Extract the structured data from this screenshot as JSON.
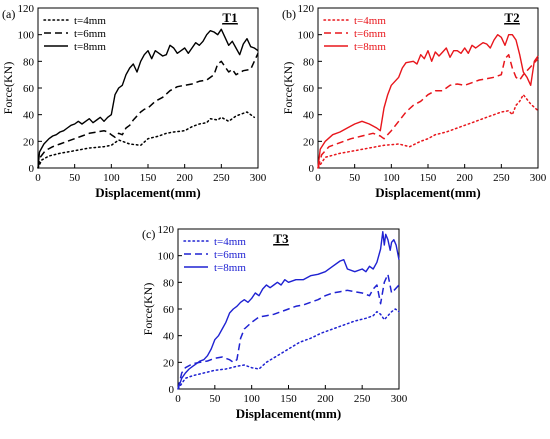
{
  "chart_data": [
    {
      "type": "line",
      "panel_label": "(a)",
      "tag": "T1",
      "color": "#000000",
      "xlabel": "Displacement(mm)",
      "ylabel": "Force(KN)",
      "xlim": [
        0,
        300
      ],
      "ylim": [
        0,
        120
      ],
      "xticks": [
        0,
        50,
        100,
        150,
        200,
        250,
        300
      ],
      "yticks": [
        0,
        20,
        40,
        60,
        80,
        100,
        120
      ],
      "legend_position": "top-left",
      "series": [
        {
          "name": "t=4mm",
          "style": "dotted",
          "x": [
            0,
            5,
            15,
            30,
            50,
            70,
            90,
            100,
            110,
            115,
            125,
            140,
            150,
            165,
            175,
            185,
            200,
            210,
            220,
            230,
            235,
            245,
            250,
            260,
            270,
            280,
            285,
            290,
            295
          ],
          "y": [
            0,
            6,
            9,
            11,
            13,
            15,
            16,
            17,
            21,
            20,
            18,
            17,
            22,
            24,
            26,
            27,
            28,
            31,
            33,
            34,
            37,
            36,
            38,
            35,
            39,
            41,
            42,
            40,
            38
          ]
        },
        {
          "name": "t=6mm",
          "style": "dashed",
          "x": [
            0,
            3,
            10,
            20,
            30,
            40,
            50,
            60,
            70,
            80,
            90,
            95,
            100,
            105,
            110,
            115,
            120,
            125,
            130,
            140,
            145,
            150,
            160,
            170,
            180,
            190,
            200,
            210,
            220,
            230,
            240,
            245,
            250,
            255,
            260,
            265,
            270,
            280,
            290,
            300
          ],
          "y": [
            0,
            8,
            13,
            16,
            18,
            20,
            22,
            24,
            26,
            27,
            28,
            27,
            25,
            23,
            26,
            25,
            30,
            32,
            36,
            42,
            44,
            45,
            50,
            53,
            58,
            61,
            62,
            63,
            65,
            66,
            70,
            78,
            80,
            76,
            72,
            74,
            70,
            73,
            74,
            86
          ]
        },
        {
          "name": "t=8mm",
          "style": "solid",
          "x": [
            0,
            2,
            8,
            15,
            20,
            25,
            30,
            35,
            40,
            45,
            50,
            55,
            60,
            65,
            70,
            75,
            80,
            85,
            90,
            95,
            100,
            105,
            110,
            115,
            120,
            125,
            130,
            135,
            140,
            145,
            150,
            155,
            160,
            165,
            170,
            175,
            180,
            185,
            190,
            195,
            200,
            205,
            210,
            215,
            220,
            225,
            230,
            235,
            240,
            245,
            250,
            255,
            260,
            265,
            270,
            275,
            280,
            285,
            290,
            295,
            300
          ],
          "y": [
            0,
            12,
            18,
            22,
            24,
            25,
            27,
            28,
            30,
            32,
            33,
            35,
            33,
            35,
            37,
            34,
            36,
            38,
            35,
            38,
            40,
            55,
            60,
            62,
            70,
            75,
            78,
            72,
            80,
            85,
            88,
            82,
            88,
            86,
            84,
            85,
            92,
            90,
            86,
            88,
            90,
            86,
            90,
            94,
            92,
            95,
            100,
            103,
            102,
            100,
            104,
            98,
            92,
            95,
            90,
            85,
            93,
            97,
            91,
            90,
            88
          ]
        }
      ]
    },
    {
      "type": "line",
      "panel_label": "(b)",
      "tag": "T2",
      "color": "#e8161c",
      "xlabel": "Displacement(mm)",
      "ylabel": "Force(KN)",
      "xlim": [
        0,
        300
      ],
      "ylim": [
        0,
        120
      ],
      "xticks": [
        0,
        50,
        100,
        150,
        200,
        250,
        300
      ],
      "yticks": [
        0,
        20,
        40,
        60,
        80,
        100,
        120
      ],
      "legend_position": "top-left",
      "series": [
        {
          "name": "t=4mm",
          "style": "dotted",
          "x": [
            0,
            10,
            30,
            50,
            70,
            90,
            110,
            125,
            140,
            150,
            160,
            175,
            190,
            200,
            210,
            220,
            230,
            240,
            250,
            260,
            265,
            270,
            275,
            280,
            290,
            300
          ],
          "y": [
            0,
            8,
            11,
            13,
            15,
            17,
            18,
            16,
            20,
            22,
            25,
            27,
            30,
            32,
            34,
            36,
            38,
            40,
            42,
            43,
            40,
            47,
            50,
            55,
            48,
            43
          ]
        },
        {
          "name": "t=6mm",
          "style": "dashed",
          "x": [
            0,
            5,
            15,
            30,
            45,
            60,
            75,
            85,
            90,
            100,
            110,
            120,
            130,
            140,
            150,
            160,
            170,
            180,
            190,
            200,
            210,
            220,
            230,
            240,
            250,
            255,
            260,
            265,
            270,
            275,
            280,
            290,
            300
          ],
          "y": [
            0,
            10,
            16,
            19,
            22,
            24,
            26,
            24,
            22,
            28,
            35,
            42,
            47,
            50,
            55,
            58,
            58,
            62,
            63,
            62,
            64,
            66,
            67,
            68,
            70,
            82,
            85,
            75,
            68,
            66,
            70,
            76,
            82
          ]
        },
        {
          "name": "t=8mm",
          "style": "solid",
          "x": [
            0,
            3,
            10,
            20,
            30,
            40,
            50,
            60,
            70,
            80,
            85,
            90,
            95,
            100,
            110,
            115,
            120,
            130,
            135,
            140,
            145,
            150,
            155,
            160,
            165,
            170,
            175,
            180,
            185,
            190,
            195,
            200,
            205,
            210,
            215,
            220,
            225,
            230,
            235,
            240,
            245,
            250,
            255,
            260,
            265,
            270,
            275,
            280,
            285,
            290,
            295,
            300
          ],
          "y": [
            0,
            14,
            20,
            25,
            27,
            30,
            33,
            35,
            33,
            30,
            28,
            45,
            55,
            62,
            68,
            75,
            79,
            80,
            78,
            85,
            82,
            88,
            80,
            87,
            84,
            87,
            90,
            83,
            88,
            88,
            86,
            90,
            86,
            92,
            90,
            92,
            94,
            93,
            90,
            96,
            100,
            98,
            92,
            100,
            100,
            96,
            85,
            72,
            68,
            62,
            80,
            84
          ]
        }
      ]
    },
    {
      "type": "line",
      "panel_label": "(c)",
      "tag": "T3",
      "color": "#1f22d2",
      "xlabel": "Displacement(mm)",
      "ylabel": "Force(KN)",
      "xlim": [
        0,
        300
      ],
      "ylim": [
        0,
        120
      ],
      "xticks": [
        0,
        50,
        100,
        150,
        200,
        250,
        300
      ],
      "yticks": [
        0,
        20,
        40,
        60,
        80,
        100,
        120
      ],
      "legend_position": "top-left",
      "series": [
        {
          "name": "t=4mm",
          "style": "dotted",
          "x": [
            0,
            10,
            20,
            35,
            50,
            65,
            80,
            90,
            100,
            110,
            120,
            135,
            150,
            165,
            180,
            195,
            210,
            225,
            240,
            255,
            265,
            270,
            275,
            280,
            285,
            290,
            295,
            300
          ],
          "y": [
            0,
            8,
            10,
            12,
            14,
            15,
            17,
            18,
            16,
            15,
            20,
            25,
            30,
            35,
            38,
            42,
            45,
            48,
            51,
            53,
            55,
            58,
            56,
            52,
            55,
            58,
            60,
            58
          ]
        },
        {
          "name": "t=6mm",
          "style": "dashed",
          "x": [
            0,
            5,
            10,
            20,
            30,
            40,
            50,
            60,
            70,
            75,
            80,
            85,
            90,
            100,
            110,
            120,
            130,
            140,
            150,
            160,
            170,
            180,
            190,
            200,
            210,
            220,
            230,
            240,
            250,
            260,
            265,
            270,
            275,
            280,
            285,
            290,
            300
          ],
          "y": [
            0,
            12,
            16,
            19,
            20,
            21,
            23,
            24,
            22,
            20,
            22,
            38,
            45,
            50,
            54,
            55,
            56,
            58,
            60,
            62,
            63,
            65,
            67,
            70,
            72,
            73,
            74,
            73,
            72,
            70,
            75,
            78,
            64,
            80,
            86,
            72,
            78
          ]
        },
        {
          "name": "t=8mm",
          "style": "solid",
          "x": [
            0,
            5,
            10,
            15,
            20,
            25,
            30,
            35,
            40,
            45,
            50,
            55,
            60,
            65,
            70,
            75,
            80,
            85,
            90,
            95,
            100,
            105,
            110,
            115,
            120,
            125,
            130,
            135,
            140,
            145,
            150,
            160,
            170,
            180,
            190,
            200,
            210,
            220,
            225,
            230,
            240,
            250,
            255,
            260,
            265,
            270,
            275,
            278,
            280,
            282,
            285,
            288,
            290,
            293,
            296,
            300
          ],
          "y": [
            0,
            8,
            12,
            15,
            17,
            19,
            21,
            22,
            25,
            30,
            37,
            40,
            45,
            50,
            57,
            60,
            62,
            65,
            67,
            65,
            68,
            72,
            70,
            75,
            78,
            76,
            78,
            80,
            78,
            82,
            80,
            82,
            82,
            85,
            86,
            88,
            92,
            96,
            97,
            90,
            88,
            90,
            88,
            92,
            90,
            95,
            105,
            118,
            108,
            116,
            112,
            104,
            110,
            112,
            108,
            97
          ]
        }
      ]
    }
  ]
}
